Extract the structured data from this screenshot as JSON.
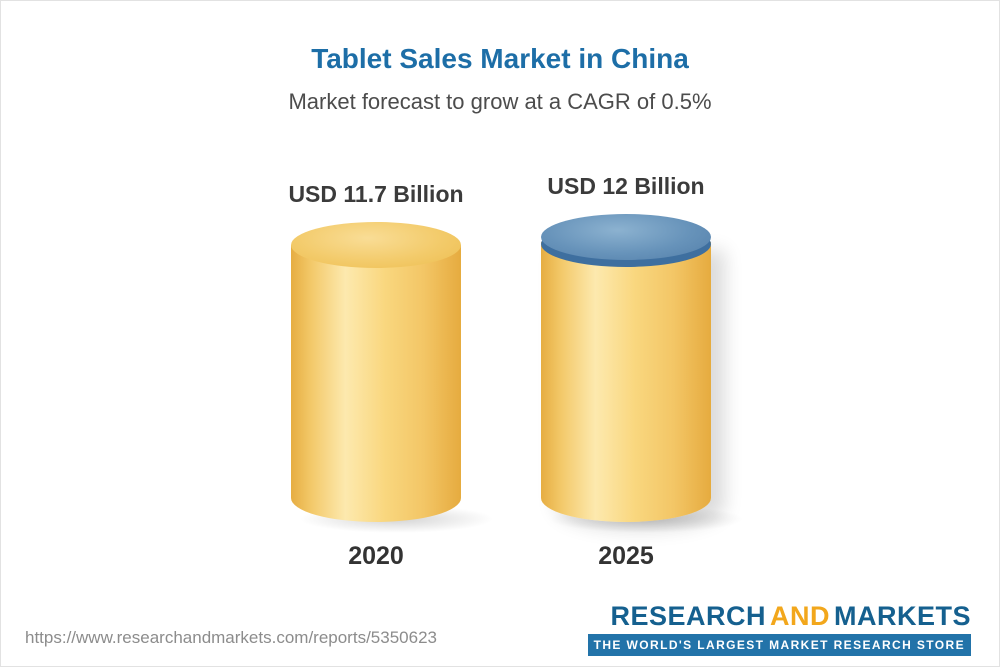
{
  "header": {
    "title": "Tablet Sales Market in China",
    "subtitle": "Market forecast to grow at a CAGR of 0.5%"
  },
  "chart_data": {
    "type": "bar",
    "title": "Tablet Sales Market in China",
    "subtitle": "Market forecast to grow at a CAGR of 0.5%",
    "categories": [
      "2020",
      "2025"
    ],
    "values": [
      11.7,
      12
    ],
    "value_labels": [
      "USD 11.7 Billion",
      "USD 12 Billion"
    ],
    "unit": "USD Billion",
    "cagr": "0.5%",
    "ylim": [
      0,
      12
    ],
    "grid": false,
    "legend_position": "none",
    "bar_style": "3d-cylinder",
    "bar_color": "#f8d27b",
    "cap_colors": [
      "#f0c35e",
      "#5e8fb8"
    ]
  },
  "bars": [
    {
      "category": "2020",
      "value": 11.7,
      "value_label": "USD 11.7 Billion"
    },
    {
      "category": "2025",
      "value": 12,
      "value_label": "USD 12 Billion"
    }
  ],
  "footer": {
    "url": "https://www.researchandmarkets.com/reports/5350623",
    "logo": {
      "word1": "RESEARCH",
      "word2": "AND",
      "word3": "MARKETS",
      "tagline": "THE WORLD'S LARGEST MARKET RESEARCH STORE"
    }
  },
  "colors": {
    "title_blue": "#1d6ea7",
    "subtitle_gray": "#4c4c4c",
    "cylinder_gold": "#f8d27b",
    "cap_blue": "#5e8fb8",
    "logo_blue": "#15608f",
    "logo_gold": "#f2a71c",
    "tagline_bg": "#2273a9",
    "tagline_text": "#ffffff",
    "url_gray": "#8c8c8c"
  }
}
